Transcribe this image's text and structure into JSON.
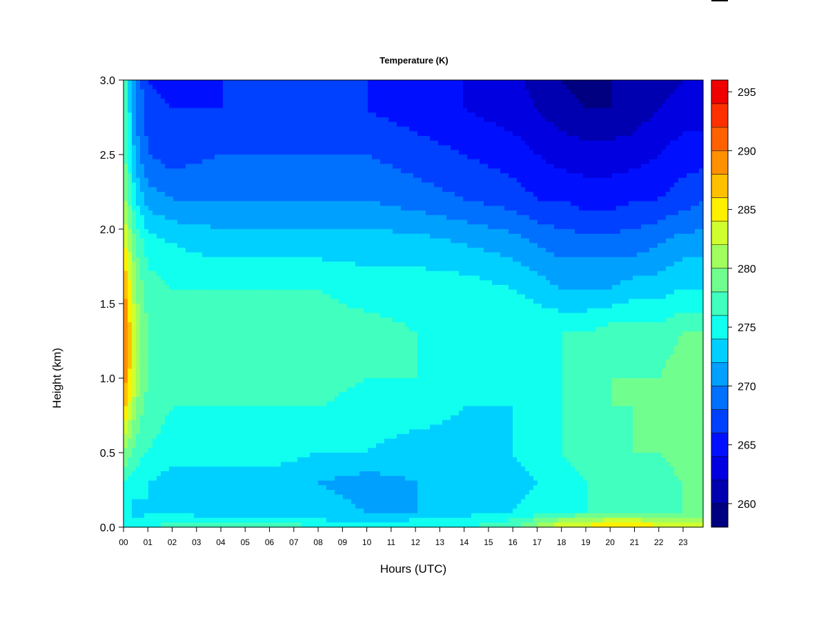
{
  "chart_data": {
    "type": "heatmap",
    "title": "Temperature (K)",
    "xlabel": "Hours (UTC)",
    "ylabel": "Height (km)",
    "xlim": [
      0,
      23.9
    ],
    "ylim": [
      0,
      3.0
    ],
    "x_ticks": [
      "00",
      "01",
      "02",
      "03",
      "04",
      "05",
      "06",
      "07",
      "08",
      "09",
      "10",
      "11",
      "12",
      "13",
      "14",
      "15",
      "16",
      "17",
      "18",
      "19",
      "20",
      "21",
      "22",
      "23"
    ],
    "y_ticks": [
      "0.0",
      "0.5",
      "1.0",
      "1.5",
      "2.0",
      "2.5",
      "3.0"
    ],
    "colorbar": {
      "min": 258,
      "max": 296,
      "step": 2,
      "ticks": [
        "260",
        "265",
        "270",
        "275",
        "280",
        "285",
        "290",
        "295"
      ],
      "colors": [
        "#000080",
        "#0000B0",
        "#0000E0",
        "#0010FF",
        "#0040FF",
        "#0070FF",
        "#00A0FF",
        "#00D0FF",
        "#10FFEF",
        "#40FFBF",
        "#70FF8F",
        "#A0FF5F",
        "#D0FF2F",
        "#FFF000",
        "#FFC000",
        "#FF9000",
        "#FF6000",
        "#FF3000",
        "#F00000",
        "#B00000",
        "#800000"
      ]
    },
    "x_hours": [
      0,
      0.5,
      1,
      2,
      4,
      6,
      8,
      10,
      12,
      14,
      16,
      17,
      18,
      19,
      20,
      21,
      22,
      23,
      23.9
    ],
    "y_km": [
      0.0,
      0.05,
      0.1,
      0.3,
      0.5,
      0.8,
      1.0,
      1.3,
      1.6,
      1.9,
      2.2,
      2.5,
      2.8,
      3.0
    ],
    "temperature_K": [
      [
        276,
        274,
        276,
        277,
        277,
        278,
        276,
        277,
        276,
        276,
        277,
        281,
        284,
        285,
        286,
        286,
        285,
        283,
        283
      ],
      [
        276,
        274,
        275,
        275,
        274,
        275,
        274,
        273,
        274,
        275,
        276,
        278,
        280,
        281,
        282,
        282,
        281,
        280,
        280
      ],
      [
        275,
        273,
        274,
        274,
        273,
        273,
        273,
        272,
        272,
        273,
        274,
        275,
        276,
        276,
        277,
        277,
        278,
        278,
        278
      ],
      [
        276,
        275,
        274,
        273,
        273,
        273,
        272,
        271,
        272,
        272,
        273,
        274,
        275,
        276,
        276,
        276,
        277,
        278,
        278
      ],
      [
        280,
        277,
        276,
        275,
        275,
        275,
        274,
        274,
        273,
        273,
        274,
        275,
        276,
        277,
        277,
        278,
        278,
        279,
        279
      ],
      [
        287,
        280,
        277,
        276,
        276,
        276,
        276,
        275,
        275,
        274,
        274,
        275,
        276,
        277,
        278,
        278,
        278,
        279,
        279
      ],
      [
        290,
        282,
        278,
        277,
        277,
        277,
        277,
        276,
        276,
        275,
        275,
        275,
        276,
        277,
        278,
        278,
        278,
        279,
        279
      ],
      [
        291,
        282,
        278,
        277,
        277,
        277,
        277,
        277,
        276,
        276,
        276,
        276,
        276,
        276,
        277,
        277,
        277,
        278,
        278
      ],
      [
        289,
        280,
        277,
        276,
        276,
        276,
        276,
        275,
        275,
        275,
        274,
        273,
        272,
        272,
        272,
        273,
        273,
        274,
        274
      ],
      [
        285,
        278,
        275,
        274,
        273,
        273,
        273,
        273,
        273,
        272,
        271,
        270,
        269,
        269,
        269,
        269,
        270,
        271,
        271
      ],
      [
        281,
        274,
        271,
        270,
        270,
        270,
        270,
        270,
        269,
        268,
        267,
        266,
        266,
        265,
        265,
        266,
        266,
        267,
        268
      ],
      [
        279,
        271,
        268,
        267,
        268,
        268,
        268,
        268,
        267,
        266,
        265,
        264,
        263,
        263,
        263,
        263,
        264,
        265,
        265
      ],
      [
        278,
        270,
        267,
        266,
        266,
        266,
        267,
        266,
        265,
        264,
        263,
        262,
        261,
        260,
        260,
        261,
        262,
        263,
        263
      ],
      [
        278,
        270,
        266,
        265,
        266,
        266,
        266,
        266,
        265,
        264,
        263,
        261,
        260,
        259,
        260,
        260,
        261,
        262,
        262
      ]
    ]
  }
}
